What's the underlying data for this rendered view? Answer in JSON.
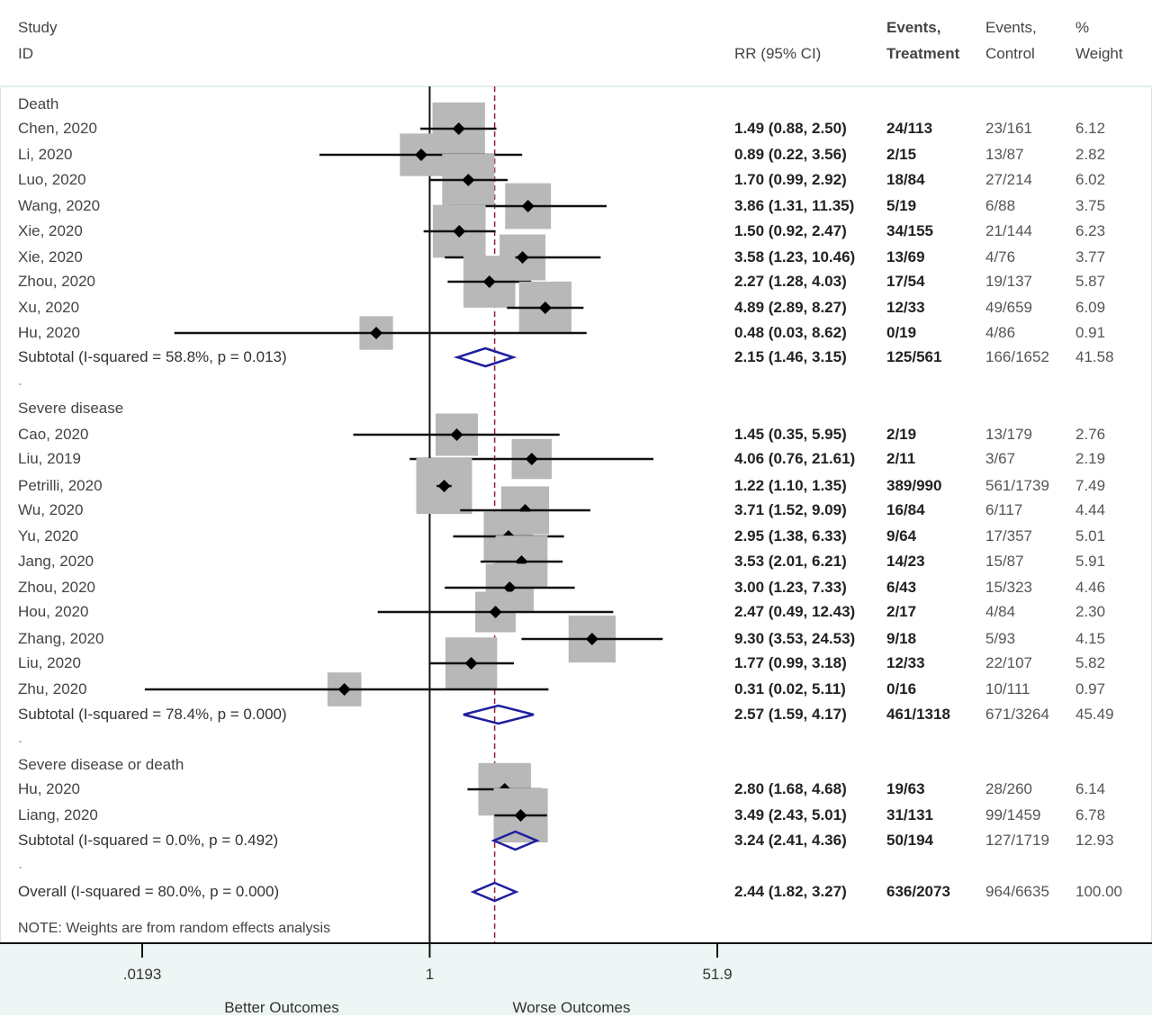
{
  "header": {
    "study_line1": "Study",
    "study_line2": "ID",
    "rr": "RR (95% CI)",
    "events_treat_line1": "Events,",
    "events_treat_line2": "Treatment",
    "events_ctrl_line1": "Events,",
    "events_ctrl_line2": "Control",
    "weight_line1": "%",
    "weight_line2": "Weight"
  },
  "note": "NOTE: Weights are from random effects analysis",
  "colors": {
    "diamond": "#1f1f9e",
    "box": "#b8b8b8",
    "ref_dashed": "#8b2232",
    "line": "#111111"
  },
  "chart_data": {
    "type": "forest",
    "scale": "log",
    "x_ticks": [
      {
        "value": 0.0193,
        "label": ".0193"
      },
      {
        "value": 1,
        "label": "1"
      },
      {
        "value": 51.9,
        "label": "51.9"
      }
    ],
    "xlim": [
      0.0193,
      51.9
    ],
    "null_line": 1,
    "overall_line": 2.44,
    "left_label": "Better Outcomes",
    "right_label": "Worse Outcomes",
    "groups": [
      {
        "name": "Death",
        "studies": [
          {
            "study": "Chen, 2020",
            "rr": 1.49,
            "lo": 0.88,
            "hi": 2.5,
            "rr_text": "1.49 (0.88, 2.50)",
            "events_treatment": "24/113",
            "events_control": "23/161",
            "weight": "6.12"
          },
          {
            "study": "Li, 2020",
            "rr": 0.89,
            "lo": 0.22,
            "hi": 3.56,
            "rr_text": "0.89 (0.22, 3.56)",
            "events_treatment": "2/15",
            "events_control": "13/87",
            "weight": "2.82"
          },
          {
            "study": "Luo, 2020",
            "rr": 1.7,
            "lo": 0.99,
            "hi": 2.92,
            "rr_text": "1.70 (0.99, 2.92)",
            "events_treatment": "18/84",
            "events_control": "27/214",
            "weight": "6.02"
          },
          {
            "study": "Wang, 2020",
            "rr": 3.86,
            "lo": 1.31,
            "hi": 11.35,
            "rr_text": "3.86 (1.31, 11.35)",
            "events_treatment": "5/19",
            "events_control": "6/88",
            "weight": "3.75"
          },
          {
            "study": "Xie, 2020",
            "rr": 1.5,
            "lo": 0.92,
            "hi": 2.47,
            "rr_text": "1.50 (0.92, 2.47)",
            "events_treatment": "34/155",
            "events_control": "21/144",
            "weight": "6.23"
          },
          {
            "study": "Xie, 2020",
            "rr": 3.58,
            "lo": 1.23,
            "hi": 10.46,
            "rr_text": "3.58 (1.23, 10.46)",
            "events_treatment": "13/69",
            "events_control": "4/76",
            "weight": "3.77"
          },
          {
            "study": "Zhou, 2020",
            "rr": 2.27,
            "lo": 1.28,
            "hi": 4.03,
            "rr_text": "2.27 (1.28, 4.03)",
            "events_treatment": "17/54",
            "events_control": "19/137",
            "weight": "5.87"
          },
          {
            "study": "Xu, 2020",
            "rr": 4.89,
            "lo": 2.89,
            "hi": 8.27,
            "rr_text": "4.89 (2.89, 8.27)",
            "events_treatment": "12/33",
            "events_control": "49/659",
            "weight": "6.09"
          },
          {
            "study": "Hu, 2020",
            "rr": 0.48,
            "lo": 0.03,
            "hi": 8.62,
            "rr_text": "0.48 (0.03, 8.62)",
            "events_treatment": "0/19",
            "events_control": "4/86",
            "weight": "0.91"
          }
        ],
        "subtotal": {
          "label": "Subtotal  (I-squared = 58.8%, p = 0.013)",
          "rr": 2.15,
          "lo": 1.46,
          "hi": 3.15,
          "rr_text": "2.15 (1.46, 3.15)",
          "events_treatment": "125/561",
          "events_control": "166/1652",
          "weight": "41.58"
        }
      },
      {
        "name": "Severe disease",
        "studies": [
          {
            "study": "Cao, 2020",
            "rr": 1.45,
            "lo": 0.35,
            "hi": 5.95,
            "rr_text": "1.45 (0.35, 5.95)",
            "events_treatment": "2/19",
            "events_control": "13/179",
            "weight": "2.76"
          },
          {
            "study": "Liu, 2019",
            "rr": 4.06,
            "lo": 0.76,
            "hi": 21.61,
            "rr_text": "4.06 (0.76, 21.61)",
            "events_treatment": "2/11",
            "events_control": "3/67",
            "weight": "2.19"
          },
          {
            "study": "Petrilli, 2020",
            "rr": 1.22,
            "lo": 1.1,
            "hi": 1.35,
            "rr_text": "1.22 (1.10, 1.35)",
            "events_treatment": "389/990",
            "events_control": "561/1739",
            "weight": "7.49"
          },
          {
            "study": "Wu, 2020",
            "rr": 3.71,
            "lo": 1.52,
            "hi": 9.09,
            "rr_text": "3.71 (1.52, 9.09)",
            "events_treatment": "16/84",
            "events_control": "6/117",
            "weight": "4.44"
          },
          {
            "study": "Yu, 2020",
            "rr": 2.95,
            "lo": 1.38,
            "hi": 6.33,
            "rr_text": "2.95 (1.38, 6.33)",
            "events_treatment": "9/64",
            "events_control": "17/357",
            "weight": "5.01"
          },
          {
            "study": "Jang, 2020",
            "rr": 3.53,
            "lo": 2.01,
            "hi": 6.21,
            "rr_text": "3.53 (2.01, 6.21)",
            "events_treatment": "14/23",
            "events_control": "15/87",
            "weight": "5.91"
          },
          {
            "study": "Zhou, 2020",
            "rr": 3.0,
            "lo": 1.23,
            "hi": 7.33,
            "rr_text": "3.00 (1.23, 7.33)",
            "events_treatment": "6/43",
            "events_control": "15/323",
            "weight": "4.46"
          },
          {
            "study": "Hou, 2020",
            "rr": 2.47,
            "lo": 0.49,
            "hi": 12.43,
            "rr_text": "2.47 (0.49, 12.43)",
            "events_treatment": "2/17",
            "events_control": "4/84",
            "weight": "2.30"
          },
          {
            "study": "Zhang, 2020",
            "rr": 9.3,
            "lo": 3.53,
            "hi": 24.53,
            "rr_text": "9.30 (3.53, 24.53)",
            "events_treatment": "9/18",
            "events_control": "5/93",
            "weight": "4.15"
          },
          {
            "study": "Liu, 2020",
            "rr": 1.77,
            "lo": 0.99,
            "hi": 3.18,
            "rr_text": "1.77 (0.99, 3.18)",
            "events_treatment": "12/33",
            "events_control": "22/107",
            "weight": "5.82"
          },
          {
            "study": "Zhu, 2020",
            "rr": 0.31,
            "lo": 0.02,
            "hi": 5.11,
            "rr_text": "0.31 (0.02, 5.11)",
            "events_treatment": "0/16",
            "events_control": "10/111",
            "weight": "0.97"
          }
        ],
        "subtotal": {
          "label": "Subtotal  (I-squared = 78.4%, p = 0.000)",
          "rr": 2.57,
          "lo": 1.59,
          "hi": 4.17,
          "rr_text": "2.57 (1.59, 4.17)",
          "events_treatment": "461/1318",
          "events_control": "671/3264",
          "weight": "45.49"
        }
      },
      {
        "name": "Severe disease or death",
        "studies": [
          {
            "study": "Hu, 2020",
            "rr": 2.8,
            "lo": 1.68,
            "hi": 4.68,
            "rr_text": "2.80 (1.68, 4.68)",
            "events_treatment": "19/63",
            "events_control": "28/260",
            "weight": "6.14"
          },
          {
            "study": "Liang, 2020",
            "rr": 3.49,
            "lo": 2.43,
            "hi": 5.01,
            "rr_text": "3.49 (2.43, 5.01)",
            "events_treatment": "31/131",
            "events_control": "99/1459",
            "weight": "6.78"
          }
        ],
        "subtotal": {
          "label": "Subtotal  (I-squared = 0.0%, p = 0.492)",
          "rr": 3.24,
          "lo": 2.41,
          "hi": 4.36,
          "rr_text": "3.24 (2.41, 4.36)",
          "events_treatment": "50/194",
          "events_control": "127/1719",
          "weight": "12.93"
        }
      }
    ],
    "overall": {
      "label": "Overall  (I-squared = 80.0%, p = 0.000)",
      "rr": 2.44,
      "lo": 1.82,
      "hi": 3.27,
      "rr_text": "2.44 (1.82, 3.27)",
      "events_treatment": "636/2073",
      "events_control": "964/6635",
      "weight": "100.00"
    }
  }
}
